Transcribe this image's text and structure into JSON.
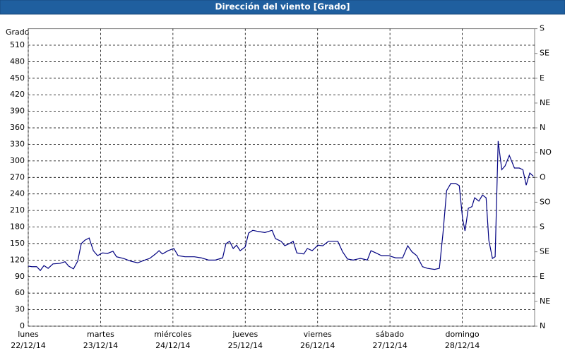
{
  "chart_data": {
    "type": "line",
    "title": "Dirección del viento [Grado]",
    "y_label": "Grado",
    "x_day_labels": [
      "lunes",
      "martes",
      "miércoles",
      "jueves",
      "viernes",
      "sábado",
      "domingo"
    ],
    "x_date_labels": [
      "22/12/14",
      "23/12/14",
      "24/12/14",
      "25/12/14",
      "26/12/14",
      "27/12/14",
      "28/12/14"
    ],
    "xlim": [
      0,
      168
    ],
    "xticks": [
      0,
      24,
      48,
      72,
      96,
      120,
      144
    ],
    "ylim": [
      0,
      540
    ],
    "yticks": [
      0,
      30,
      60,
      90,
      120,
      150,
      180,
      210,
      240,
      270,
      300,
      330,
      360,
      390,
      420,
      450,
      480,
      510
    ],
    "y2lim": [
      0,
      540
    ],
    "y2ticks": [
      {
        "value": 0,
        "label": "N"
      },
      {
        "value": 45,
        "label": "NE"
      },
      {
        "value": 90,
        "label": "E"
      },
      {
        "value": 135,
        "label": "SE"
      },
      {
        "value": 180,
        "label": "S"
      },
      {
        "value": 225,
        "label": "SO"
      },
      {
        "value": 270,
        "label": "O"
      },
      {
        "value": 315,
        "label": "NO"
      },
      {
        "value": 360,
        "label": "N"
      },
      {
        "value": 405,
        "label": "NE"
      },
      {
        "value": 450,
        "label": "E"
      },
      {
        "value": 495,
        "label": "SE"
      },
      {
        "value": 540,
        "label": "S"
      }
    ],
    "grid": true,
    "x": [
      0,
      1.2,
      2.8,
      4,
      5.2,
      6.6,
      8.2,
      10.5,
      12.2,
      13.4,
      15,
      16.4,
      17.6,
      18.8,
      20.2,
      21.6,
      23,
      24.6,
      26.3,
      28.1,
      29.3,
      31.6,
      34,
      36.3,
      38.7,
      40.3,
      42.2,
      43.4,
      44.5,
      46.4,
      48.3,
      49.7,
      52,
      55.1,
      57.4,
      59.8,
      62.1,
      64.5,
      65.6,
      66.8,
      68,
      69.1,
      70.3,
      72,
      73.1,
      74.5,
      76.2,
      78.5,
      80.9,
      82,
      83.9,
      85.1,
      86.7,
      87.9,
      89.1,
      91.4,
      92.6,
      94.2,
      96.1,
      97.7,
      99.6,
      102.7,
      104.3,
      105.9,
      107.8,
      110.2,
      112.5,
      113.7,
      115.3,
      117.2,
      119.5,
      121.9,
      124.2,
      125.9,
      127.3,
      128.9,
      130.8,
      132.4,
      134.8,
      136.4,
      137.6,
      138.8,
      140.2,
      141.8,
      143,
      144.1,
      144.9,
      146,
      147.2,
      148.1,
      149.5,
      150.7,
      151.9,
      152.8,
      154,
      154.9,
      155.9,
      157.1,
      158.2,
      159.6,
      161.3,
      162.9,
      164.1,
      165.2,
      166.4,
      167.6
    ],
    "series": [
      {
        "color": "#000080",
        "values": [
          109,
          108,
          108,
          101,
          110,
          105,
          113,
          114,
          117,
          109,
          104,
          118,
          150,
          156,
          160,
          137,
          128,
          133,
          132,
          136,
          126,
          123,
          118,
          115,
          120,
          123,
          131,
          137,
          131,
          137,
          141,
          128,
          126,
          126,
          124,
          120,
          120,
          124,
          150,
          154,
          141,
          147,
          137,
          144,
          169,
          174,
          172,
          170,
          174,
          159,
          154,
          146,
          150,
          154,
          133,
          131,
          141,
          137,
          147,
          146,
          154,
          154,
          135,
          122,
          120,
          123,
          120,
          137,
          133,
          128,
          128,
          124,
          124,
          146,
          135,
          128,
          108,
          105,
          103,
          105,
          169,
          246,
          259,
          259,
          255,
          195,
          173,
          214,
          217,
          233,
          227,
          238,
          233,
          156,
          123,
          126,
          336,
          284,
          291,
          310,
          287,
          287,
          284,
          256,
          278,
          272
        ]
      }
    ]
  }
}
